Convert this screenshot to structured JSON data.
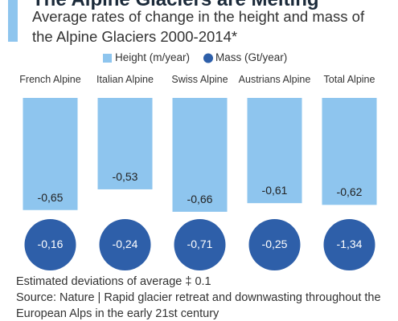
{
  "chart_data": {
    "type": "bar",
    "title": "The Alpine Glaciers are Melting",
    "subtitle": "Average rates of change in the height and mass of the Alpine Glaciers 2000-2014*",
    "categories": [
      "French Alpine",
      "Italian Alpine",
      "Swiss Alpine",
      "Austrians Alpine",
      "Total Alpine"
    ],
    "series": [
      {
        "name": "Height (m/year)",
        "color": "#8ec5ee",
        "values": [
          -0.65,
          -0.53,
          -0.66,
          -0.61,
          -0.62
        ],
        "value_labels": [
          "-0,65",
          "-0,53",
          "-0,66",
          "-0,61",
          "-0,62"
        ]
      },
      {
        "name": "Mass (Gt/year)",
        "color": "#2e5fa9",
        "values": [
          -0.16,
          -0.24,
          -0.71,
          -0.25,
          -1.34
        ],
        "value_labels": [
          "-0,16",
          "-0,24",
          "-0,71",
          "-0,25",
          "-1,34"
        ]
      }
    ],
    "ylim": [
      -0.7,
      0
    ],
    "note": "Estimated deviations of average ‡ 0.1",
    "source": "Source: Nature | Rapid glacier retreat and downwasting throughout the European Alps in the early 21st century"
  }
}
